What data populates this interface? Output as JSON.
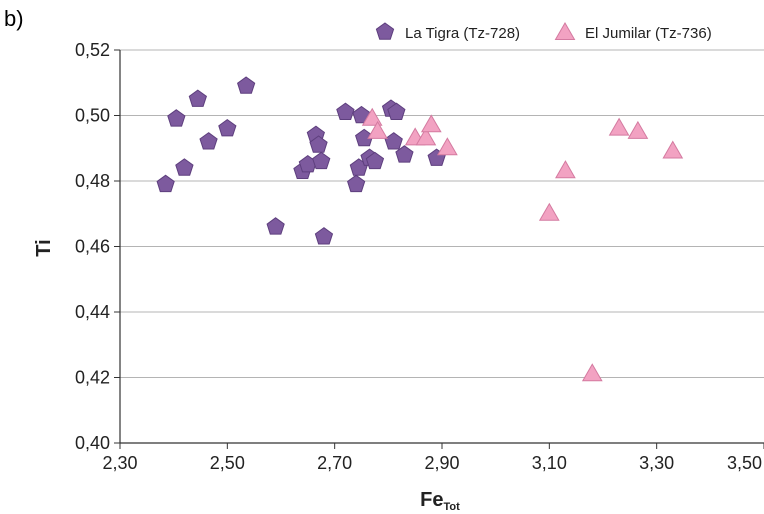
{
  "panel_label": "b)",
  "colors": {
    "la_tigra": "#7d5a9e",
    "la_tigra_stroke": "#5e3f7e",
    "el_jumilar": "#f2a2c2",
    "el_jumilar_stroke": "#d47aa0",
    "grid": "#b4b4b4",
    "axis": "#333333"
  },
  "chart_data": {
    "type": "scatter",
    "title": "",
    "xlabel": "Fe",
    "xlabel_subscript": "Tot",
    "ylabel": "Ti",
    "xlim": [
      2.3,
      3.5
    ],
    "ylim": [
      0.4,
      0.52
    ],
    "x_ticks": [
      "2,30",
      "2,50",
      "2,70",
      "2,90",
      "3,10",
      "3,30",
      "3,50"
    ],
    "y_ticks": [
      "0,40",
      "0,42",
      "0,44",
      "0,46",
      "0,48",
      "0,50",
      "0,52"
    ],
    "grid": "horizontal",
    "legend_position": "top-right",
    "series": [
      {
        "name": "La Tigra (Tz-728)",
        "marker": "pentagon",
        "color": "#7d5a9e",
        "points": [
          [
            2.385,
            0.479
          ],
          [
            2.405,
            0.499
          ],
          [
            2.42,
            0.484
          ],
          [
            2.445,
            0.505
          ],
          [
            2.465,
            0.492
          ],
          [
            2.5,
            0.496
          ],
          [
            2.535,
            0.509
          ],
          [
            2.59,
            0.466
          ],
          [
            2.64,
            0.483
          ],
          [
            2.65,
            0.485
          ],
          [
            2.665,
            0.494
          ],
          [
            2.67,
            0.491
          ],
          [
            2.675,
            0.486
          ],
          [
            2.68,
            0.463
          ],
          [
            2.72,
            0.501
          ],
          [
            2.74,
            0.479
          ],
          [
            2.745,
            0.484
          ],
          [
            2.75,
            0.5
          ],
          [
            2.755,
            0.493
          ],
          [
            2.765,
            0.487
          ],
          [
            2.775,
            0.486
          ],
          [
            2.805,
            0.502
          ],
          [
            2.81,
            0.492
          ],
          [
            2.815,
            0.501
          ],
          [
            2.83,
            0.488
          ],
          [
            2.89,
            0.487
          ]
        ]
      },
      {
        "name": "El Jumilar (Tz-736)",
        "marker": "triangle",
        "color": "#f2a2c2",
        "points": [
          [
            2.77,
            0.499
          ],
          [
            2.78,
            0.495
          ],
          [
            2.85,
            0.493
          ],
          [
            2.87,
            0.493
          ],
          [
            2.88,
            0.497
          ],
          [
            2.91,
            0.49
          ],
          [
            3.1,
            0.47
          ],
          [
            3.13,
            0.483
          ],
          [
            3.18,
            0.421
          ],
          [
            3.23,
            0.496
          ],
          [
            3.265,
            0.495
          ],
          [
            3.33,
            0.489
          ]
        ]
      }
    ]
  }
}
